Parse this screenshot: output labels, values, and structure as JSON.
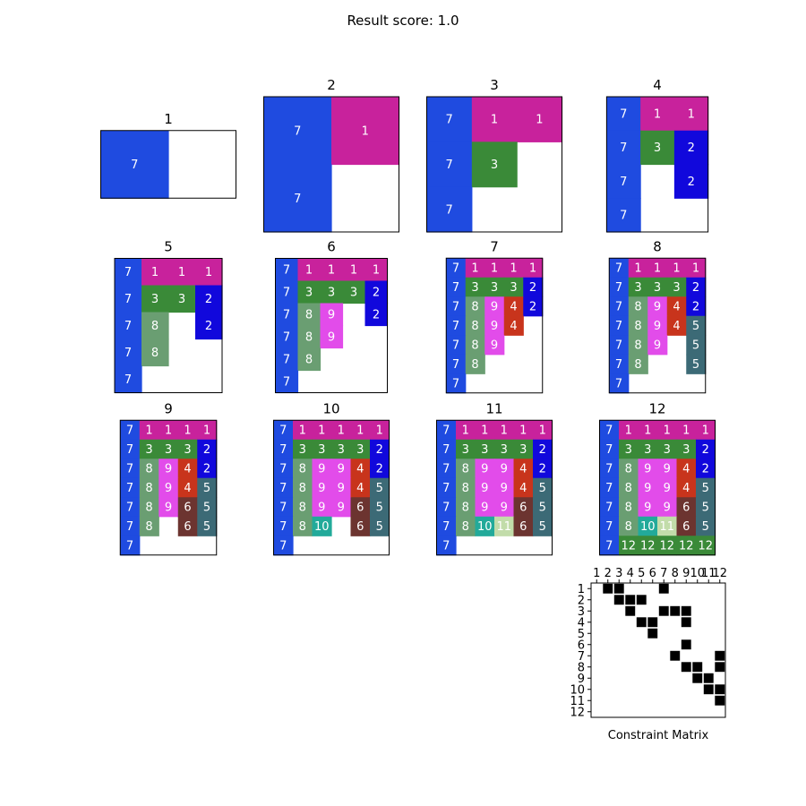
{
  "title": "Result score: 1.0",
  "colors": {
    "1": "#c8229c",
    "2": "#1108dc",
    "3": "#3a8a38",
    "4": "#c8341c",
    "5": "#3c6a76",
    "6": "#6c3430",
    "7": "#1f4be0",
    "8": "#6a9e72",
    "9": "#e24cea",
    "10": "#22aa9a",
    "11": "#c2dcaa",
    "12": "#3a8a38",
    "empty": "#ffffff",
    "grid_border": "#000000",
    "cell_text": "#ffffff",
    "matrix_mark": "#000000"
  },
  "chart_data": [
    {
      "type": "grid",
      "title": "1",
      "grid": [
        [
          7,
          0
        ]
      ]
    },
    {
      "type": "grid",
      "title": "2",
      "grid": [
        [
          7,
          1
        ],
        [
          7,
          0
        ]
      ]
    },
    {
      "type": "grid",
      "title": "3",
      "grid": [
        [
          7,
          1,
          1
        ],
        [
          7,
          3,
          0
        ],
        [
          7,
          0,
          0
        ]
      ]
    },
    {
      "type": "grid",
      "title": "4",
      "grid": [
        [
          7,
          1,
          1
        ],
        [
          7,
          3,
          2
        ],
        [
          7,
          0,
          2
        ],
        [
          7,
          0,
          0
        ]
      ]
    },
    {
      "type": "grid",
      "title": "5",
      "grid": [
        [
          7,
          1,
          1,
          1
        ],
        [
          7,
          3,
          3,
          2
        ],
        [
          7,
          8,
          0,
          2
        ],
        [
          7,
          8,
          0,
          0
        ],
        [
          7,
          0,
          0,
          0
        ]
      ]
    },
    {
      "type": "grid",
      "title": "6",
      "grid": [
        [
          7,
          1,
          1,
          1,
          1
        ],
        [
          7,
          3,
          3,
          3,
          2
        ],
        [
          7,
          8,
          9,
          0,
          2
        ],
        [
          7,
          8,
          9,
          0,
          0
        ],
        [
          7,
          8,
          0,
          0,
          0
        ],
        [
          7,
          0,
          0,
          0,
          0
        ]
      ]
    },
    {
      "type": "grid",
      "title": "7",
      "grid": [
        [
          7,
          1,
          1,
          1,
          1
        ],
        [
          7,
          3,
          3,
          3,
          2
        ],
        [
          7,
          8,
          9,
          4,
          2
        ],
        [
          7,
          8,
          9,
          4,
          0
        ],
        [
          7,
          8,
          9,
          0,
          0
        ],
        [
          7,
          8,
          0,
          0,
          0
        ],
        [
          7,
          0,
          0,
          0,
          0
        ]
      ]
    },
    {
      "type": "grid",
      "title": "8",
      "grid": [
        [
          7,
          1,
          1,
          1,
          1
        ],
        [
          7,
          3,
          3,
          3,
          2
        ],
        [
          7,
          8,
          9,
          4,
          2
        ],
        [
          7,
          8,
          9,
          4,
          5
        ],
        [
          7,
          8,
          9,
          0,
          5
        ],
        [
          7,
          8,
          0,
          0,
          5
        ],
        [
          7,
          0,
          0,
          0,
          0
        ]
      ]
    },
    {
      "type": "grid",
      "title": "9",
      "grid": [
        [
          7,
          1,
          1,
          1,
          1
        ],
        [
          7,
          3,
          3,
          3,
          2
        ],
        [
          7,
          8,
          9,
          4,
          2
        ],
        [
          7,
          8,
          9,
          4,
          5
        ],
        [
          7,
          8,
          9,
          6,
          5
        ],
        [
          7,
          8,
          0,
          6,
          5
        ],
        [
          7,
          0,
          0,
          0,
          0
        ]
      ]
    },
    {
      "type": "grid",
      "title": "10",
      "grid": [
        [
          7,
          1,
          1,
          1,
          1,
          1
        ],
        [
          7,
          3,
          3,
          3,
          3,
          2
        ],
        [
          7,
          8,
          9,
          9,
          4,
          2
        ],
        [
          7,
          8,
          9,
          9,
          4,
          5
        ],
        [
          7,
          8,
          9,
          9,
          6,
          5
        ],
        [
          7,
          8,
          10,
          0,
          6,
          5
        ],
        [
          7,
          0,
          0,
          0,
          0,
          0
        ]
      ]
    },
    {
      "type": "grid",
      "title": "11",
      "grid": [
        [
          7,
          1,
          1,
          1,
          1,
          1
        ],
        [
          7,
          3,
          3,
          3,
          3,
          2
        ],
        [
          7,
          8,
          9,
          9,
          4,
          2
        ],
        [
          7,
          8,
          9,
          9,
          4,
          5
        ],
        [
          7,
          8,
          9,
          9,
          6,
          5
        ],
        [
          7,
          8,
          10,
          11,
          6,
          5
        ],
        [
          7,
          0,
          0,
          0,
          0,
          0
        ]
      ]
    },
    {
      "type": "grid",
      "title": "12",
      "grid": [
        [
          7,
          1,
          1,
          1,
          1,
          1
        ],
        [
          7,
          3,
          3,
          3,
          3,
          2
        ],
        [
          7,
          8,
          9,
          9,
          4,
          2
        ],
        [
          7,
          8,
          9,
          9,
          4,
          5
        ],
        [
          7,
          8,
          9,
          9,
          6,
          5
        ],
        [
          7,
          8,
          10,
          11,
          6,
          5
        ],
        [
          7,
          12,
          12,
          12,
          12,
          12
        ]
      ]
    },
    {
      "type": "heatmap",
      "xlabel": "Constraint Matrix",
      "x_ticks": [
        "1",
        "2",
        "3",
        "4",
        "5",
        "6",
        "7",
        "8",
        "9",
        "10",
        "11",
        "12"
      ],
      "y_ticks": [
        "1",
        "2",
        "3",
        "4",
        "5",
        "6",
        "7",
        "8",
        "9",
        "10",
        "11",
        "12"
      ],
      "points": [
        [
          1,
          2
        ],
        [
          1,
          3
        ],
        [
          1,
          7
        ],
        [
          2,
          3
        ],
        [
          2,
          4
        ],
        [
          2,
          5
        ],
        [
          3,
          4
        ],
        [
          3,
          7
        ],
        [
          3,
          8
        ],
        [
          3,
          9
        ],
        [
          4,
          5
        ],
        [
          4,
          6
        ],
        [
          4,
          9
        ],
        [
          5,
          6
        ],
        [
          6,
          9
        ],
        [
          7,
          8
        ],
        [
          7,
          12
        ],
        [
          8,
          9
        ],
        [
          8,
          10
        ],
        [
          8,
          12
        ],
        [
          9,
          10
        ],
        [
          9,
          11
        ],
        [
          10,
          11
        ],
        [
          10,
          12
        ],
        [
          11,
          12
        ]
      ]
    }
  ]
}
